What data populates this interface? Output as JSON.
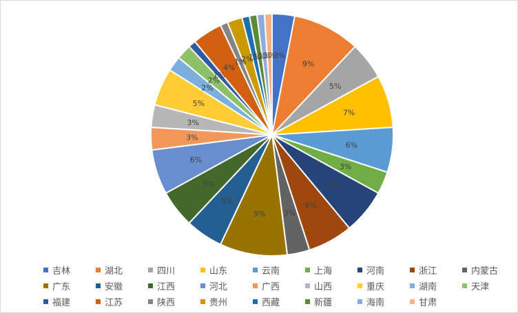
{
  "chart_data": {
    "type": "pie",
    "title": "",
    "legend_position": "bottom",
    "categories": [
      "吉林",
      "湖北",
      "四川",
      "山东",
      "云南",
      "上海",
      "河南",
      "浙江",
      "内蒙古",
      "广东",
      "安徽",
      "江西",
      "河北",
      "广西",
      "山西",
      "重庆",
      "湖南",
      "天津",
      "福建",
      "江苏",
      "陕西",
      "贵州",
      "西藏",
      "新疆",
      "海南",
      "甘肃"
    ],
    "values": [
      3,
      9,
      5,
      7,
      6,
      3,
      6,
      6,
      3,
      9,
      5,
      5,
      6,
      3,
      3,
      5,
      2,
      2,
      1,
      4,
      1,
      2,
      1,
      1,
      1,
      1
    ],
    "labels": [
      "3%",
      "9%",
      "5%",
      "7%",
      "6%",
      "3%",
      "6%",
      "6%",
      "3%",
      "9%",
      "5%",
      "5%",
      "6%",
      "3%",
      "3%",
      "5%",
      "2%",
      "2%",
      "1%",
      "4%",
      "1%",
      "2%",
      "1%",
      "1%",
      "1%",
      "1%"
    ],
    "colors": [
      "#4472C4",
      "#ED7D31",
      "#A5A5A5",
      "#FFC000",
      "#5B9BD5",
      "#70AD47",
      "#264478",
      "#9E480E",
      "#636363",
      "#997300",
      "#255E91",
      "#43682B",
      "#698ED0",
      "#F1975A",
      "#B7B7B7",
      "#FFCD33",
      "#7CAFDD",
      "#8CC168",
      "#335AA1",
      "#D26012",
      "#848484",
      "#CC9A00",
      "#1E6EB2",
      "#5A8A38",
      "#8FAADC",
      "#F4B183"
    ]
  }
}
